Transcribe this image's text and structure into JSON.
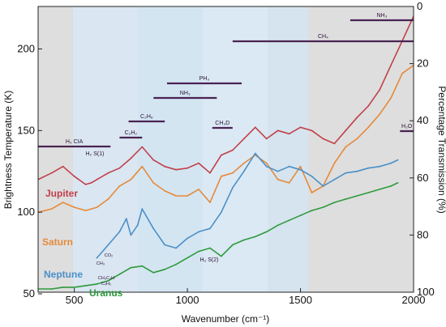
{
  "chart_data": {
    "type": "line",
    "xlabel": "Wavenumber (cm⁻¹)",
    "ylabel": "Brightness Temperature (K)",
    "y2label": "Percentage Transmission (%)",
    "xlim": [
      340,
      2000
    ],
    "ylim": [
      51,
      226
    ],
    "y2lim": [
      100,
      0
    ],
    "x_ticks": [
      "500",
      "1000",
      "1500",
      "2000"
    ],
    "y_ticks": [
      "50",
      "100",
      "150",
      "200"
    ],
    "y2_ticks": [
      "0",
      "20",
      "40",
      "60",
      "80",
      "100"
    ],
    "colors": {
      "jupiter": "#c0404a",
      "saturn": "#e58a3a",
      "neptune": "#4a90c8",
      "uranus": "#2e9a3c",
      "background_transmission": "#dcdcdc",
      "window": "#d6e6f2",
      "band": "#4a2352"
    },
    "series": [
      {
        "name": "Jupiter",
        "x": [
          340,
          400,
          450,
          500,
          550,
          575,
          600,
          650,
          700,
          750,
          800,
          850,
          900,
          950,
          1000,
          1050,
          1100,
          1150,
          1200,
          1250,
          1300,
          1350,
          1400,
          1450,
          1500,
          1550,
          1600,
          1650,
          1700,
          1750,
          1800,
          1850,
          1900,
          1950,
          2000
        ],
        "values": [
          120,
          124,
          128,
          122,
          117,
          118,
          120,
          124,
          127,
          133,
          140,
          132,
          128,
          126,
          127,
          130,
          124,
          135,
          138,
          145,
          152,
          145,
          150,
          148,
          152,
          150,
          145,
          142,
          150,
          158,
          165,
          175,
          190,
          205,
          220
        ]
      },
      {
        "name": "Saturn",
        "x": [
          340,
          400,
          450,
          500,
          550,
          600,
          650,
          700,
          750,
          800,
          850,
          900,
          950,
          1000,
          1050,
          1100,
          1150,
          1200,
          1250,
          1300,
          1350,
          1400,
          1450,
          1500,
          1550,
          1600,
          1650,
          1700,
          1750,
          1800,
          1850,
          1900,
          1950,
          2000
        ],
        "values": [
          100,
          102,
          106,
          103,
          101,
          103,
          108,
          116,
          120,
          128,
          118,
          113,
          110,
          110,
          114,
          106,
          122,
          124,
          130,
          135,
          130,
          120,
          118,
          128,
          112,
          116,
          130,
          140,
          145,
          152,
          160,
          170,
          185,
          190
        ]
      },
      {
        "name": "Neptune",
        "x": [
          600,
          650,
          700,
          730,
          750,
          780,
          800,
          850,
          900,
          950,
          1000,
          1050,
          1100,
          1150,
          1200,
          1250,
          1300,
          1350,
          1400,
          1450,
          1500,
          1550,
          1600,
          1650,
          1700,
          1750,
          1800,
          1850,
          1900,
          1930
        ],
        "values": [
          72,
          80,
          88,
          96,
          86,
          92,
          102,
          90,
          80,
          78,
          84,
          88,
          90,
          100,
          115,
          125,
          136,
          128,
          125,
          128,
          126,
          122,
          116,
          120,
          124,
          125,
          127,
          128,
          130,
          132
        ]
      },
      {
        "name": "Uranus",
        "x": [
          340,
          400,
          450,
          500,
          550,
          600,
          650,
          700,
          750,
          800,
          850,
          900,
          950,
          1000,
          1050,
          1100,
          1150,
          1200,
          1250,
          1300,
          1350,
          1400,
          1450,
          1500,
          1550,
          1600,
          1650,
          1700,
          1750,
          1800,
          1850,
          1900,
          1930
        ],
        "values": [
          53,
          53,
          54,
          54,
          55,
          56,
          58,
          62,
          66,
          67,
          63,
          65,
          68,
          72,
          76,
          78,
          73,
          80,
          83,
          85,
          88,
          92,
          95,
          98,
          101,
          103,
          106,
          108,
          110,
          112,
          114,
          116,
          118
        ]
      }
    ],
    "annotations": [
      {
        "text": "NH₃",
        "x_start": 1720,
        "x_end": 2000
      },
      {
        "text": "CH₄",
        "x_start": 1200,
        "x_end": 2000
      },
      {
        "text": "PH₃",
        "x_start": 910,
        "x_end": 1240
      },
      {
        "text": "NH₃",
        "x_start": 850,
        "x_end": 1130
      },
      {
        "text": "C₂H₆",
        "x_start": 740,
        "x_end": 900
      },
      {
        "text": "CH₃D",
        "x_start": 1110,
        "x_end": 1200
      },
      {
        "text": "C₂H₂",
        "x_start": 700,
        "x_end": 800
      },
      {
        "text": "H₂ CIA",
        "x_start": 340,
        "x_end": 660
      },
      {
        "text": "H₂O",
        "x_start": 1940,
        "x_end": 2000
      },
      {
        "text": "H₂ S(1)",
        "x": 587
      },
      {
        "text": "H₂ S(2)",
        "x": 1034
      },
      {
        "text": "CH₃",
        "x": 640
      },
      {
        "text": "CO₂",
        "x": 667
      },
      {
        "text": "CH₃C₂H",
        "x": 628
      },
      {
        "text": "C₄H₂",
        "x": 628
      }
    ],
    "grid": false,
    "legend": "inline labels"
  },
  "labels": {
    "jupiter": "Jupiter",
    "saturn": "Saturn",
    "neptune": "Neptune",
    "uranus": "Uranus",
    "x_unit": "cm⁻¹"
  }
}
